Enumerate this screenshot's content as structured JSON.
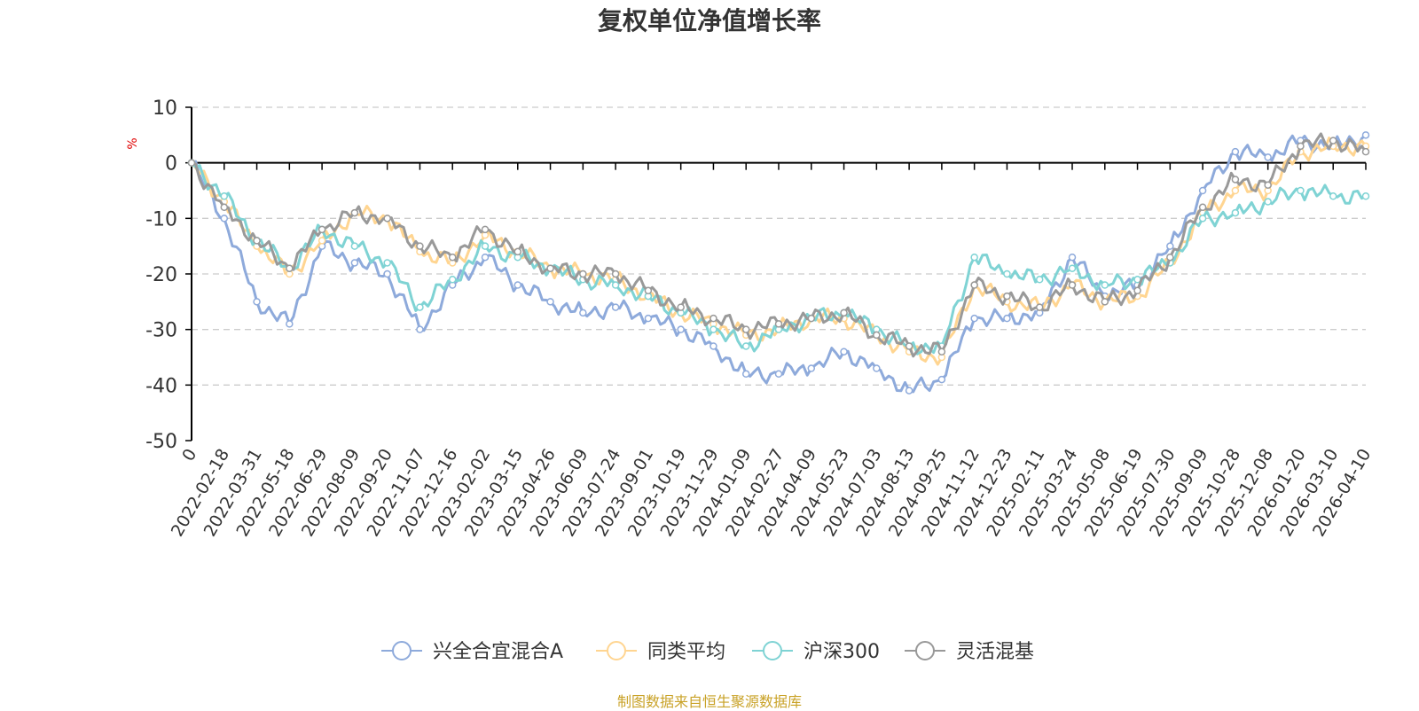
{
  "chart_data": {
    "type": "line",
    "title": "复权单位净值增长率",
    "ylabel": "%",
    "xlabel": "",
    "ylim": [
      -50,
      10
    ],
    "yticks": [
      10,
      0,
      -10,
      -20,
      -30,
      -40,
      -50
    ],
    "grid": true,
    "legend_position": "bottom",
    "categories": [
      "0",
      "2022-02-18",
      "2022-03-31",
      "2022-05-18",
      "2022-06-29",
      "2022-08-09",
      "2022-09-20",
      "2022-11-07",
      "2022-12-16",
      "2023-02-02",
      "2023-03-15",
      "2023-04-26",
      "2023-06-09",
      "2023-07-24",
      "2023-09-01",
      "2023-10-19",
      "2023-11-29",
      "2024-01-09",
      "2024-02-27",
      "2024-04-09",
      "2024-05-23",
      "2024-07-03",
      "2024-08-13",
      "2024-09-25",
      "2024-11-12",
      "2024-12-23",
      "2025-02-11",
      "2025-03-24",
      "2025-05-08",
      "2025-06-19",
      "2025-07-30",
      "2025-09-09",
      "2025-10-28",
      "2025-12-08",
      "2026-01-20",
      "2026-03-10",
      "2026-04-10"
    ],
    "series": [
      {
        "name": "兴全合宜混合A",
        "color": "#8eaadb",
        "values": [
          0,
          -10,
          -25,
          -29,
          -15,
          -18,
          -20,
          -30,
          -22,
          -17,
          -22,
          -25,
          -27,
          -26,
          -28,
          -30,
          -33,
          -38,
          -38,
          -37,
          -34,
          -37,
          -41,
          -39,
          -28,
          -28,
          -27,
          -17,
          -24,
          -22,
          -15,
          -5,
          2,
          1,
          4,
          3,
          5
        ]
      },
      {
        "name": "同类平均",
        "color": "#ffd591",
        "values": [
          0,
          -7,
          -15,
          -20,
          -14,
          -9,
          -10,
          -16,
          -18,
          -13,
          -16,
          -19,
          -20,
          -21,
          -24,
          -27,
          -29,
          -31,
          -30,
          -28,
          -28,
          -31,
          -34,
          -35,
          -22,
          -25,
          -26,
          -22,
          -25,
          -24,
          -18,
          -9,
          -5,
          -5,
          2,
          3,
          3
        ]
      },
      {
        "name": "沪深300",
        "color": "#7fd3d4",
        "values": [
          0,
          -6,
          -14,
          -19,
          -12,
          -15,
          -18,
          -26,
          -21,
          -15,
          -17,
          -19,
          -21,
          -22,
          -24,
          -27,
          -30,
          -33,
          -30,
          -28,
          -27,
          -30,
          -33,
          -33,
          -17,
          -20,
          -21,
          -19,
          -22,
          -21,
          -18,
          -10,
          -9,
          -7,
          -5,
          -6,
          -6
        ]
      },
      {
        "name": "灵活混基",
        "color": "#999999",
        "values": [
          0,
          -8,
          -14,
          -19,
          -12,
          -9,
          -10,
          -15,
          -17,
          -12,
          -16,
          -19,
          -20,
          -20,
          -23,
          -26,
          -28,
          -30,
          -29,
          -28,
          -27,
          -31,
          -33,
          -34,
          -22,
          -24,
          -26,
          -22,
          -25,
          -23,
          -17,
          -8,
          -3,
          -4,
          3,
          4,
          2
        ]
      }
    ]
  },
  "source_text": "制图数据来自恒生聚源数据库"
}
